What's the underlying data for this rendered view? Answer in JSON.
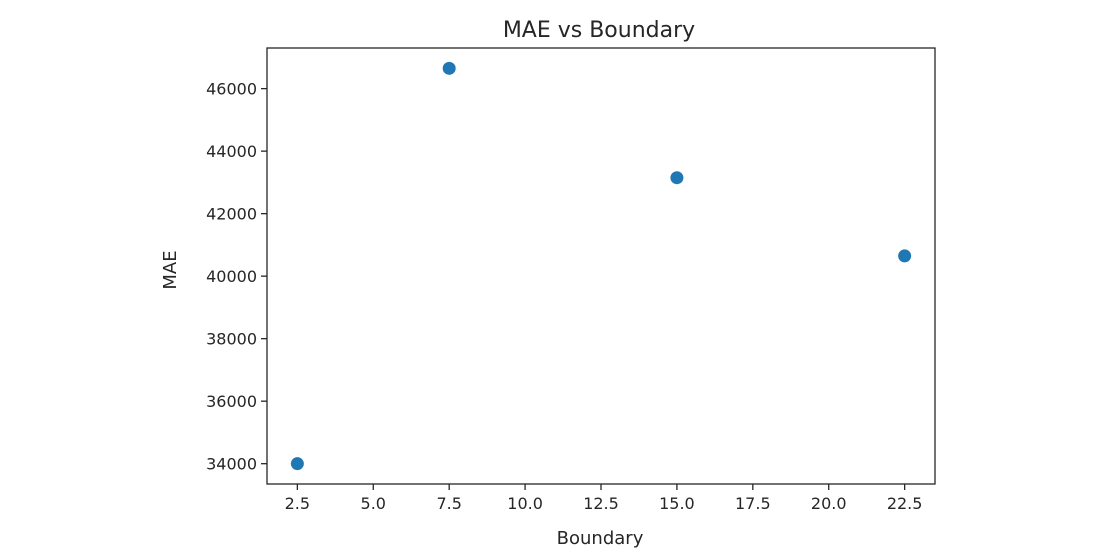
{
  "chart_data": {
    "type": "scatter",
    "title": "MAE vs Boundary",
    "xlabel": "Boundary",
    "ylabel": "MAE",
    "x": [
      2.5,
      7.5,
      15.0,
      22.5
    ],
    "y": [
      34000,
      46650,
      43150,
      40650
    ],
    "xlim": [
      1.5,
      23.5
    ],
    "ylim": [
      33350,
      47300
    ],
    "xticks": [
      2.5,
      5.0,
      7.5,
      10.0,
      12.5,
      15.0,
      17.5,
      20.0,
      22.5
    ],
    "xtick_labels": [
      "2.5",
      "5.0",
      "7.5",
      "10.0",
      "12.5",
      "15.0",
      "17.5",
      "20.0",
      "22.5"
    ],
    "yticks": [
      34000,
      36000,
      38000,
      40000,
      42000,
      44000,
      46000
    ],
    "ytick_labels": [
      "34000",
      "36000",
      "38000",
      "40000",
      "42000",
      "44000",
      "46000"
    ],
    "grid": false,
    "marker_color": "#1f77b4"
  }
}
